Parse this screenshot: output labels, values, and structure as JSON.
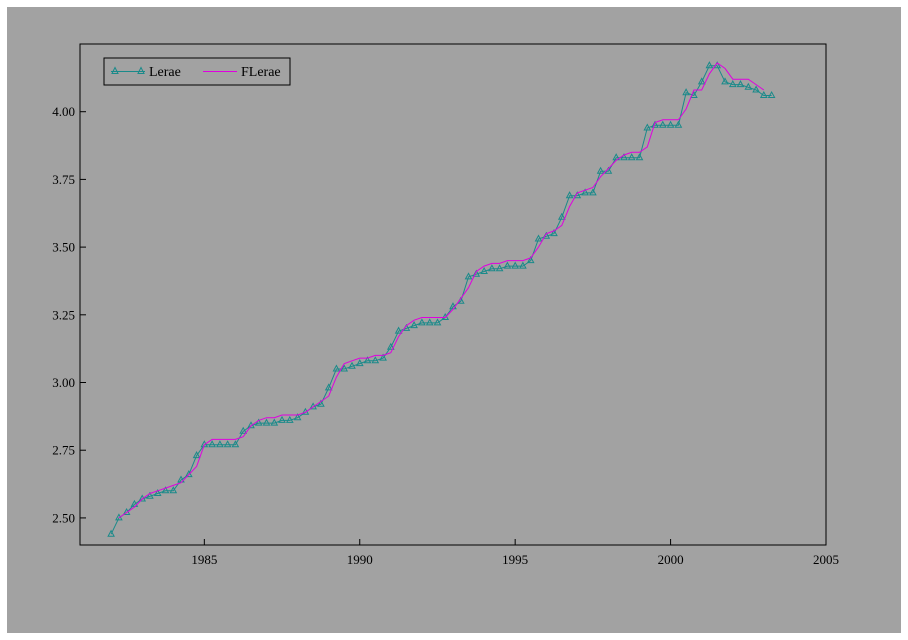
{
  "chart_data": {
    "type": "line",
    "title": "",
    "xlabel": "",
    "ylabel": "",
    "xlim": [
      1981.0,
      2005.0
    ],
    "ylim": [
      2.4,
      4.25
    ],
    "x_ticks": [
      1985,
      1990,
      1995,
      2000,
      2005
    ],
    "x_tick_labels": [
      "1985",
      "1990",
      "1995",
      "2000",
      "2005"
    ],
    "y_ticks": [
      2.5,
      2.75,
      3.0,
      3.25,
      3.5,
      3.75,
      4.0
    ],
    "y_tick_labels": [
      "2.50",
      "2.75",
      "3.00",
      "3.25",
      "3.50",
      "3.75",
      "4.00"
    ],
    "legend": {
      "position": "top-left",
      "entries": [
        "Lerae",
        "FLerae"
      ]
    },
    "colors": {
      "background": "#a2a2a2",
      "Lerae": "#1a8a8a",
      "FLerae": "#e000e0"
    },
    "series": [
      {
        "name": "Lerae",
        "marker": "triangle",
        "x": [
          1982.0,
          1982.25,
          1982.5,
          1982.75,
          1983.0,
          1983.25,
          1983.5,
          1983.75,
          1984.0,
          1984.25,
          1984.5,
          1984.75,
          1985.0,
          1985.25,
          1985.5,
          1985.75,
          1986.0,
          1986.25,
          1986.5,
          1986.75,
          1987.0,
          1987.25,
          1987.5,
          1987.75,
          1988.0,
          1988.25,
          1988.5,
          1988.75,
          1989.0,
          1989.25,
          1989.5,
          1989.75,
          1990.0,
          1990.25,
          1990.5,
          1990.75,
          1991.0,
          1991.25,
          1991.5,
          1991.75,
          1992.0,
          1992.25,
          1992.5,
          1992.75,
          1993.0,
          1993.25,
          1993.5,
          1993.75,
          1994.0,
          1994.25,
          1994.5,
          1994.75,
          1995.0,
          1995.25,
          1995.5,
          1995.75,
          1996.0,
          1996.25,
          1996.5,
          1996.75,
          1997.0,
          1997.25,
          1997.5,
          1997.75,
          1998.0,
          1998.25,
          1998.5,
          1998.75,
          1999.0,
          1999.25,
          1999.5,
          1999.75,
          2000.0,
          2000.25,
          2000.5,
          2000.75,
          2001.0,
          2001.25,
          2001.5,
          2001.75,
          2002.0,
          2002.25,
          2002.5,
          2002.75,
          2003.0,
          2003.25
        ],
        "values": [
          2.44,
          2.5,
          2.52,
          2.55,
          2.57,
          2.58,
          2.59,
          2.6,
          2.6,
          2.64,
          2.66,
          2.73,
          2.77,
          2.77,
          2.77,
          2.77,
          2.77,
          2.82,
          2.84,
          2.85,
          2.85,
          2.85,
          2.86,
          2.86,
          2.87,
          2.89,
          2.91,
          2.92,
          2.98,
          3.05,
          3.05,
          3.06,
          3.07,
          3.08,
          3.08,
          3.09,
          3.13,
          3.19,
          3.2,
          3.21,
          3.22,
          3.22,
          3.22,
          3.24,
          3.28,
          3.3,
          3.39,
          3.4,
          3.41,
          3.42,
          3.42,
          3.43,
          3.43,
          3.43,
          3.45,
          3.53,
          3.54,
          3.55,
          3.61,
          3.69,
          3.69,
          3.7,
          3.7,
          3.78,
          3.78,
          3.83,
          3.83,
          3.83,
          3.83,
          3.94,
          3.95,
          3.95,
          3.95,
          3.95,
          4.07,
          4.06,
          4.11,
          4.17,
          4.17,
          4.11,
          4.1,
          4.1,
          4.09,
          4.08,
          4.06,
          4.06
        ]
      },
      {
        "name": "FLerae",
        "x": [
          1982.25,
          1982.5,
          1982.75,
          1983.0,
          1983.25,
          1983.5,
          1983.75,
          1984.0,
          1984.25,
          1984.5,
          1984.75,
          1985.0,
          1985.25,
          1985.5,
          1985.75,
          1986.0,
          1986.25,
          1986.5,
          1986.75,
          1987.0,
          1987.25,
          1987.5,
          1987.75,
          1988.0,
          1988.25,
          1988.5,
          1988.75,
          1989.0,
          1989.25,
          1989.5,
          1989.75,
          1990.0,
          1990.25,
          1990.5,
          1990.75,
          1991.0,
          1991.25,
          1991.5,
          1991.75,
          1992.0,
          1992.25,
          1992.5,
          1992.75,
          1993.0,
          1993.25,
          1993.5,
          1993.75,
          1994.0,
          1994.25,
          1994.5,
          1994.75,
          1995.0,
          1995.25,
          1995.5,
          1995.75,
          1996.0,
          1996.25,
          1996.5,
          1996.75,
          1997.0,
          1997.25,
          1997.5,
          1997.75,
          1998.0,
          1998.25,
          1998.5,
          1998.75,
          1999.0,
          1999.25,
          1999.5,
          1999.75,
          2000.0,
          2000.25,
          2000.5,
          2000.75,
          2001.0,
          2001.25,
          2001.5,
          2001.75,
          2002.0,
          2002.25,
          2002.5,
          2002.75,
          2003.0
        ],
        "values": [
          2.5,
          2.52,
          2.54,
          2.57,
          2.59,
          2.6,
          2.61,
          2.62,
          2.63,
          2.66,
          2.69,
          2.77,
          2.79,
          2.79,
          2.79,
          2.79,
          2.8,
          2.84,
          2.86,
          2.87,
          2.87,
          2.88,
          2.88,
          2.88,
          2.89,
          2.91,
          2.93,
          2.95,
          3.02,
          3.07,
          3.08,
          3.09,
          3.09,
          3.1,
          3.1,
          3.11,
          3.17,
          3.21,
          3.23,
          3.24,
          3.24,
          3.24,
          3.24,
          3.27,
          3.31,
          3.35,
          3.41,
          3.43,
          3.44,
          3.44,
          3.45,
          3.45,
          3.45,
          3.46,
          3.5,
          3.55,
          3.56,
          3.58,
          3.65,
          3.7,
          3.71,
          3.72,
          3.76,
          3.79,
          3.82,
          3.84,
          3.85,
          3.85,
          3.87,
          3.96,
          3.97,
          3.97,
          3.97,
          4.01,
          4.08,
          4.08,
          4.14,
          4.18,
          4.16,
          4.12,
          4.12,
          4.12,
          4.1,
          4.08
        ]
      }
    ]
  }
}
